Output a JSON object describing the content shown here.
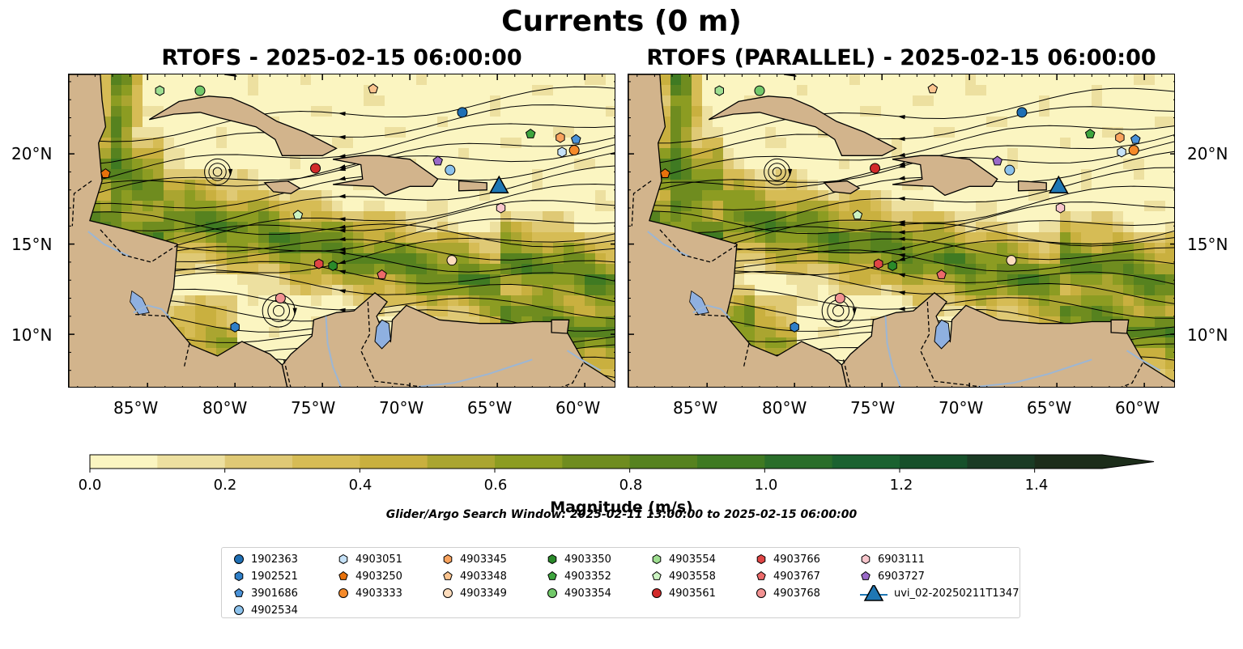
{
  "title": "Currents (0 m)",
  "panels": [
    {
      "title": "RTOFS - 2025-02-15 06:00:00"
    },
    {
      "title": "RTOFS (PARALLEL) - 2025-02-15 06:00:00"
    }
  ],
  "map": {
    "lon_range": [
      -89.5,
      -58.2
    ],
    "lat_range": [
      7.0,
      24.4
    ],
    "x_ticks": [
      "85°W",
      "80°W",
      "75°W",
      "70°W",
      "65°W",
      "60°W"
    ],
    "x_tick_values": [
      -85,
      -80,
      -75,
      -70,
      -65,
      -60
    ],
    "y_ticks": [
      "20°N",
      "15°N",
      "10°N"
    ],
    "y_tick_values": [
      20,
      15,
      10
    ],
    "land_color": "#d2b48c",
    "river_color": "#9cb6d4",
    "lake_color": "#8fb0e0"
  },
  "colorbar": {
    "label": "Magnitude (m/s)",
    "ticks": [
      "0.0",
      "0.2",
      "0.4",
      "0.6",
      "0.8",
      "1.0",
      "1.2",
      "1.4"
    ],
    "tick_values": [
      0.0,
      0.2,
      0.4,
      0.6,
      0.8,
      1.0,
      1.2,
      1.4
    ],
    "range": [
      0.0,
      1.5
    ],
    "extend": "max",
    "colors": [
      "#fbf5c1",
      "#ede0a0",
      "#dfc975",
      "#d6bc55",
      "#c9b03f",
      "#aaa530",
      "#8c9c22",
      "#6f8c1f",
      "#56821f",
      "#3f7a22",
      "#2a6e2a",
      "#1b6230",
      "#16502a",
      "#1a3b24",
      "#1c2d1a"
    ]
  },
  "search_window": "Glider/Argo Search Window: 2025-02-11 13:00:00 to 2025-02-15 06:00:00",
  "legend": [
    {
      "label": "1902363",
      "marker": "circle",
      "color": "#1f6fb4"
    },
    {
      "label": "1902521",
      "marker": "hexagon",
      "color": "#2f7fc8"
    },
    {
      "label": "3901686",
      "marker": "pentagon",
      "color": "#4a92d8"
    },
    {
      "label": "4902534",
      "marker": "circle",
      "color": "#8cc2ec"
    },
    {
      "label": "4903051",
      "marker": "hexagon",
      "color": "#c6e2f8"
    },
    {
      "label": "4903250",
      "marker": "pentagon",
      "color": "#e8720c"
    },
    {
      "label": "4903333",
      "marker": "circle",
      "color": "#f58a2a"
    },
    {
      "label": "4903345",
      "marker": "hexagon",
      "color": "#f9a35e"
    },
    {
      "label": "4903348",
      "marker": "pentagon",
      "color": "#fbc48f"
    },
    {
      "label": "4903349",
      "marker": "circle",
      "color": "#fddcbc"
    },
    {
      "label": "4903350",
      "marker": "hexagon",
      "color": "#2a8a2a"
    },
    {
      "label": "4903352",
      "marker": "pentagon",
      "color": "#3ea53e"
    },
    {
      "label": "4903354",
      "marker": "circle",
      "color": "#72c96a"
    },
    {
      "label": "4903554",
      "marker": "hexagon",
      "color": "#9ede90"
    },
    {
      "label": "4903558",
      "marker": "pentagon",
      "color": "#ccf3c2"
    },
    {
      "label": "4903561",
      "marker": "circle",
      "color": "#d22a2a"
    },
    {
      "label": "4903766",
      "marker": "hexagon",
      "color": "#e04545"
    },
    {
      "label": "4903767",
      "marker": "pentagon",
      "color": "#ec6a6a"
    },
    {
      "label": "4903768",
      "marker": "circle",
      "color": "#f29292"
    },
    {
      "label": "6903111",
      "marker": "hexagon",
      "color": "#f8c6cc"
    },
    {
      "label": "6903727",
      "marker": "pentagon",
      "color": "#9a6ac8"
    },
    {
      "label": "uvi_02-20250211T1347",
      "marker": "triangle",
      "color": "#1f77b4"
    }
  ],
  "observations": [
    {
      "id": "1902363",
      "lon": -67.0,
      "lat": 22.3
    },
    {
      "id": "1902521",
      "lon": -80.0,
      "lat": 10.4
    },
    {
      "id": "3901686",
      "lon": -60.5,
      "lat": 20.8
    },
    {
      "id": "4902534",
      "lon": -67.7,
      "lat": 19.1
    },
    {
      "id": "4903051",
      "lon": -61.3,
      "lat": 20.1
    },
    {
      "id": "4903250",
      "lon": -87.4,
      "lat": 18.9
    },
    {
      "id": "4903333",
      "lon": -60.6,
      "lat": 20.2
    },
    {
      "id": "4903345",
      "lon": -61.4,
      "lat": 20.9
    },
    {
      "id": "4903348",
      "lon": -72.1,
      "lat": 23.6
    },
    {
      "id": "4903349",
      "lon": -67.6,
      "lat": 14.1
    },
    {
      "id": "4903350",
      "lon": -74.4,
      "lat": 13.8
    },
    {
      "id": "4903352",
      "lon": -63.1,
      "lat": 21.1
    },
    {
      "id": "4903354",
      "lon": -82.0,
      "lat": 23.5
    },
    {
      "id": "4903554",
      "lon": -84.3,
      "lat": 23.5
    },
    {
      "id": "4903558",
      "lon": -76.4,
      "lat": 16.6
    },
    {
      "id": "4903561",
      "lon": -75.4,
      "lat": 19.2
    },
    {
      "id": "4903766",
      "lon": -75.2,
      "lat": 13.9
    },
    {
      "id": "4903767",
      "lon": -71.6,
      "lat": 13.3
    },
    {
      "id": "4903768",
      "lon": -77.4,
      "lat": 12.0
    },
    {
      "id": "6903111",
      "lon": -64.8,
      "lat": 17.0
    },
    {
      "id": "6903727",
      "lon": -68.4,
      "lat": 19.6
    },
    {
      "id": "uvi_02-20250211T1347",
      "lon": -64.9,
      "lat": 18.2
    }
  ]
}
